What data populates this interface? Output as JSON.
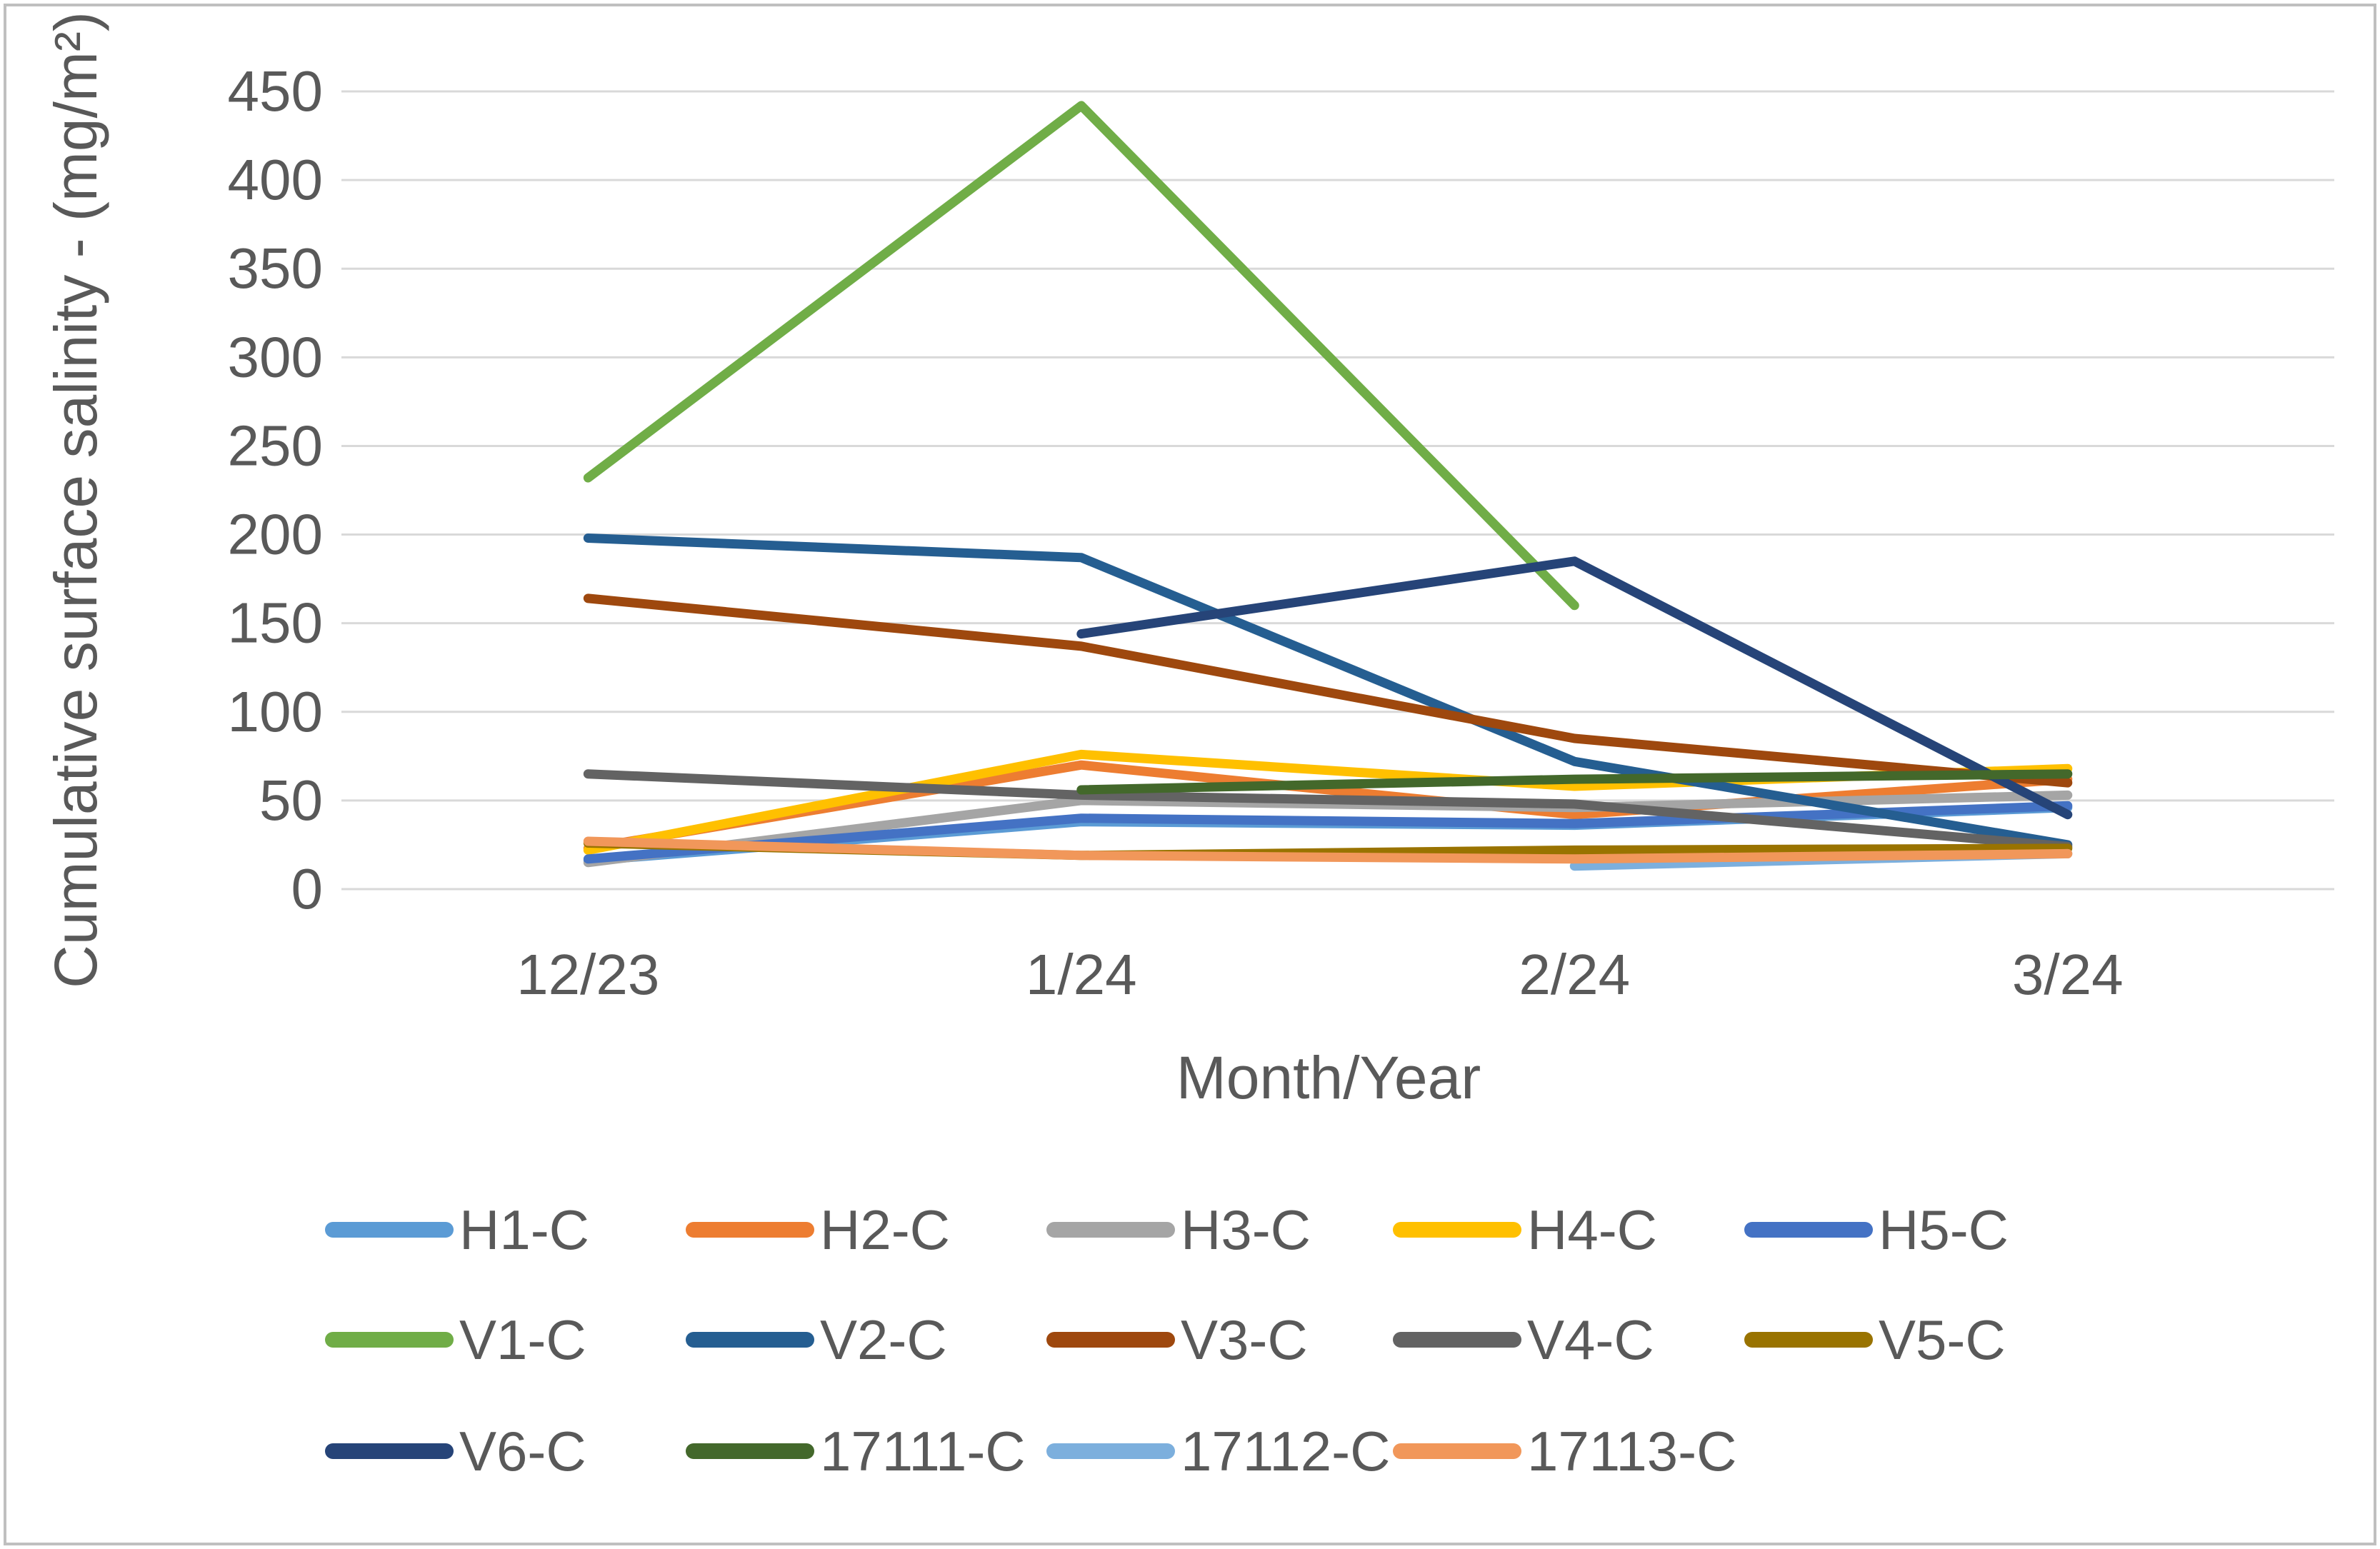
{
  "figure": {
    "background": "#FFFFFF",
    "border_color": "#BFBFBF",
    "text_color": "#595959",
    "gridline_color": "#D9D9D9"
  },
  "chart_data": {
    "type": "line",
    "title": "",
    "xlabel": "Month/Year",
    "ylabel": "Cumulative surface salinity - (mg/m²)",
    "categories": [
      "12/23",
      "1/24",
      "2/24",
      "3/24"
    ],
    "y_axis": {
      "min": 0,
      "max": 450,
      "step": 50,
      "tick_labels": [
        "0",
        "50",
        "100",
        "150",
        "200",
        "250",
        "300",
        "350",
        "400",
        "450"
      ]
    },
    "grid": "horizontal-only",
    "legend_position": "bottom",
    "series": [
      {
        "name": "H1-C",
        "color": "#5B9BD5",
        "values": [
          16,
          38,
          36,
          46
        ]
      },
      {
        "name": "H2-C",
        "color": "#ED7D31",
        "values": [
          23,
          70,
          42,
          62
        ]
      },
      {
        "name": "H3-C",
        "color": "#A5A5A5",
        "values": [
          15,
          50,
          46,
          53
        ]
      },
      {
        "name": "H4-C",
        "color": "#FFC000",
        "values": [
          22,
          76,
          58,
          68
        ]
      },
      {
        "name": "H5-C",
        "color": "#4472C4",
        "values": [
          17,
          40,
          37,
          47
        ]
      },
      {
        "name": "V1-C",
        "color": "#70AD47",
        "values": [
          232,
          442,
          160,
          null
        ]
      },
      {
        "name": "V2-C",
        "color": "#255E91",
        "values": [
          198,
          187,
          72,
          25
        ]
      },
      {
        "name": "V3-C",
        "color": "#9E480E",
        "values": [
          164,
          137,
          85,
          60
        ]
      },
      {
        "name": "V4-C",
        "color": "#636363",
        "values": [
          65,
          53,
          48,
          24
        ]
      },
      {
        "name": "V5-C",
        "color": "#997300",
        "values": [
          26,
          19,
          22,
          23
        ]
      },
      {
        "name": "V6-C",
        "color": "#264478",
        "values": [
          null,
          144,
          185,
          42
        ]
      },
      {
        "name": "17111-C",
        "color": "#43682B",
        "values": [
          null,
          56,
          62,
          65
        ]
      },
      {
        "name": "17112-C",
        "color": "#7CAFDD",
        "values": [
          null,
          null,
          13,
          20
        ]
      },
      {
        "name": "17113-C",
        "color": "#F1975A",
        "values": [
          27,
          19,
          17,
          20
        ]
      }
    ],
    "legend_rows": [
      [
        "H1-C",
        "H2-C",
        "H3-C",
        "H4-C",
        "H5-C"
      ],
      [
        "V1-C",
        "V2-C",
        "V3-C",
        "V4-C",
        "V5-C"
      ],
      [
        "V6-C",
        "17111-C",
        "17112-C",
        "17113-C"
      ]
    ]
  }
}
